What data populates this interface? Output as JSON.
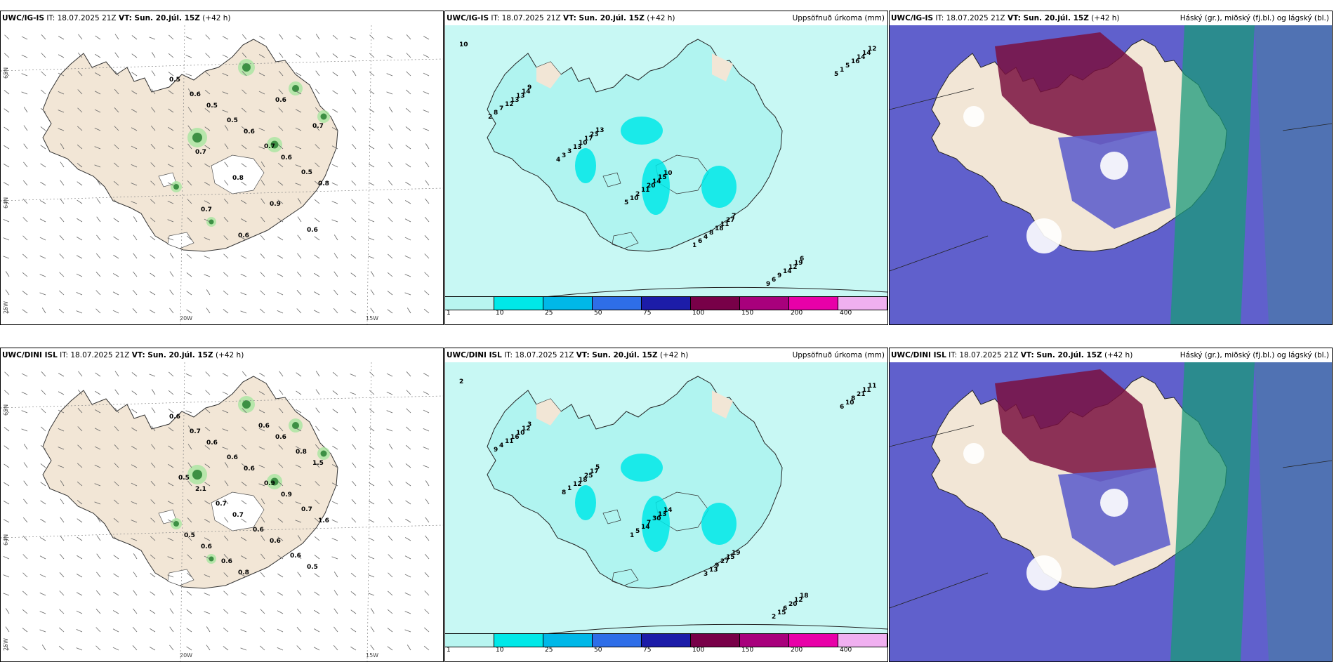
{
  "rows": [
    {
      "model": "UWC/IG-IS",
      "panels": [
        {
          "type": "wind",
          "labels": [
            "0.5",
            "0.5",
            "0.6",
            "0.6",
            "0.8",
            "0.7",
            "0.6",
            "0.6",
            "0.7",
            "0.7",
            "0.8",
            "0.9",
            "0.6",
            "0.6",
            "0.5",
            "0.7",
            "0.5"
          ],
          "grid": [
            "65N",
            "64N",
            "25W",
            "20W",
            "15W"
          ]
        },
        {
          "type": "precip",
          "title": "Uppsöfnuð úrkoma (mm)",
          "labels": [
            "10",
            "9",
            "13",
            "10",
            "7",
            "6",
            "12",
            "14",
            "23",
            "15",
            "27",
            "19",
            "14",
            "13",
            "17",
            "14",
            "11",
            "12",
            "14",
            "13",
            "10",
            "20",
            "18",
            "14",
            "16",
            "12",
            "13",
            "11",
            "8",
            "9",
            "5",
            "7",
            "3",
            "2",
            "4",
            "6",
            "1",
            "8",
            "3",
            "10",
            "6",
            "9",
            "5",
            "2",
            "4",
            "5",
            "1"
          ]
        },
        {
          "type": "cloud",
          "title": "Háský (gr.), miðský (fj.bl.) og lágský (bl.)"
        }
      ]
    },
    {
      "model": "UWC/DINI ISL",
      "panels": [
        {
          "type": "wind",
          "labels": [
            "0.6",
            "0.6",
            "0.6",
            "0.9",
            "1.6",
            "0.6",
            "0.8",
            "0.6",
            "1.5",
            "2.1",
            "0.7",
            "0.6",
            "0.5",
            "0.7",
            "0.6",
            "0.9",
            "0.7",
            "0.5",
            "0.6",
            "0.6",
            "0.8",
            "0.5",
            "0.7",
            "0.6",
            "0.6"
          ],
          "grid": [
            "65N",
            "64N",
            "25W",
            "20W",
            "15W"
          ]
        },
        {
          "type": "precip",
          "title": "Uppsöfnuð úrkoma (mm)",
          "labels": [
            "2",
            "3",
            "5",
            "14",
            "19",
            "18",
            "11",
            "12",
            "17",
            "13",
            "15",
            "12",
            "11",
            "10",
            "25",
            "30",
            "27",
            "20",
            "21",
            "16",
            "18",
            "7",
            "9",
            "6",
            "8",
            "11",
            "12",
            "14",
            "13",
            "15",
            "10",
            "4",
            "1",
            "5",
            "3",
            "2",
            "6",
            "9",
            "8",
            "1"
          ]
        },
        {
          "type": "cloud",
          "title": "Háský (gr.), miðský (fj.bl.) og lágský (bl.)"
        }
      ]
    }
  ],
  "header": {
    "it_prefix": "IT:",
    "it_value": "18.07.2025 21Z",
    "vt_label": "VT: Sun. 20.júl. 15Z",
    "lead": "(+42 h)"
  },
  "colorbar": {
    "colors": [
      "#b8f5f0",
      "#00e8e8",
      "#00b8e8",
      "#2e6ee8",
      "#1c1ca8",
      "#780048",
      "#a8007c",
      "#e800a8",
      "#f0b0f0"
    ],
    "ticks": [
      "1",
      "10",
      "25",
      "50",
      "75",
      "100",
      "150",
      "200",
      "400"
    ]
  },
  "colors": {
    "land": "#f2e6d6",
    "sea": "#ffffff",
    "precip_sea": "#c8f8f4",
    "cloud_mid": "#6060cc",
    "cloud_high": "#7a1040",
    "cloud_low": "#1a9a7a"
  }
}
